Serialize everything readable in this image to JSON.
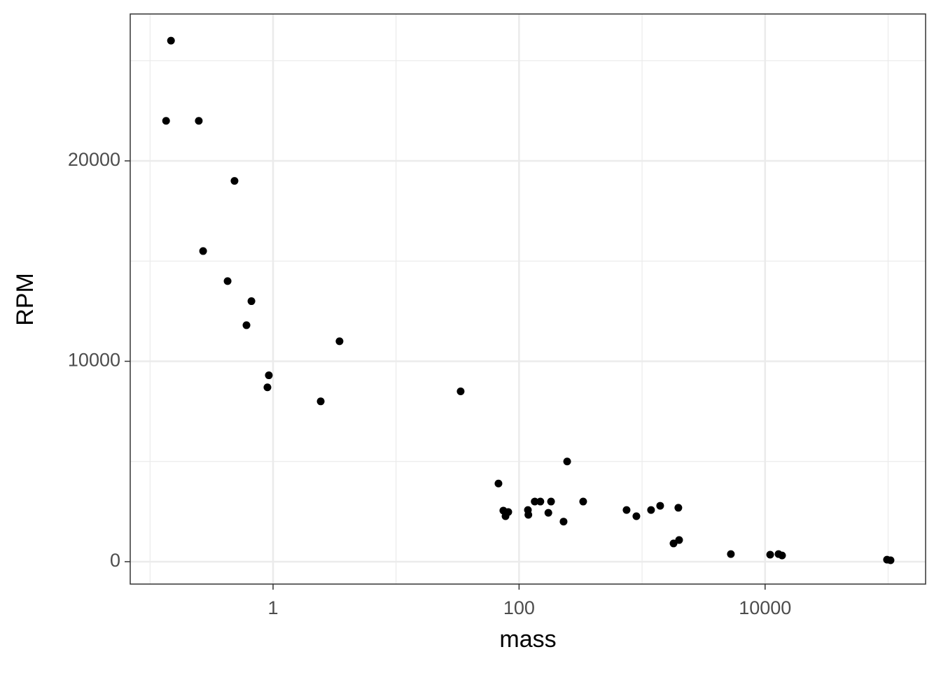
{
  "chart_data": {
    "type": "scatter",
    "x_label": "mass",
    "y_label": "RPM",
    "x": [
      0.148,
      0.135,
      0.249,
      0.486,
      0.27,
      0.427,
      0.667,
      0.608,
      0.924,
      0.9,
      2.44,
      3.47,
      33.5,
      68,
      74.5,
      81.7,
      77.6,
      118,
      119,
      134,
      149,
      182,
      173,
      230,
      246,
      332,
      748,
      899,
      1183,
      1403,
      1972,
      1802,
      2000,
      5270,
      11000,
      12860,
      13740,
      98000,
      104700
    ],
    "values": [
      26000,
      22000,
      22000,
      19000,
      15500,
      14000,
      13000,
      11800,
      9300,
      8700,
      8000,
      11000,
      8500,
      3900,
      2550,
      2480,
      2270,
      2580,
      2340,
      3000,
      3000,
      3000,
      2440,
      2000,
      5000,
      3000,
      2580,
      2270,
      2580,
      2790,
      2690,
      910,
      1080,
      380,
      350,
      380,
      310,
      100,
      70
    ],
    "color": "#000000",
    "xscale": "log",
    "xlim": [
      0.069,
      201800
    ],
    "ylim": [
      -1117,
      27330
    ],
    "xticks": [
      1,
      100,
      10000
    ],
    "yticks": [
      0,
      10000,
      20000
    ],
    "xminor": [
      0.1,
      10,
      1000,
      100000
    ],
    "yminor": [
      5000,
      15000,
      25000
    ],
    "grid": true
  }
}
